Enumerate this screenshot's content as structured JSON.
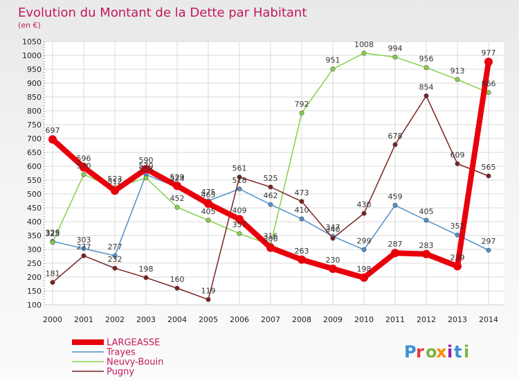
{
  "chart_data": {
    "type": "line",
    "title": "Evolution du Montant de la Dette par Habitant",
    "subtitle": "(en €)",
    "xlabel": "",
    "ylabel": "",
    "x": [
      "2000",
      "2001",
      "2002",
      "2003",
      "2004",
      "2005",
      "2006",
      "2007",
      "2008",
      "2009",
      "2010",
      "2011",
      "2012",
      "2013",
      "2014"
    ],
    "yticks": [
      100,
      150,
      200,
      250,
      300,
      350,
      400,
      450,
      500,
      550,
      600,
      650,
      700,
      750,
      800,
      850,
      900,
      950,
      1000,
      1050
    ],
    "ylim": [
      100,
      1050
    ],
    "grid": true,
    "legend": "bottom-left",
    "series": [
      {
        "name": "LARGEASSE",
        "color": "#e8000b",
        "values": [
          697,
          596,
          512,
          590,
          529,
          465,
          409,
          306,
          263,
          230,
          198,
          287,
          283,
          239,
          977
        ]
      },
      {
        "name": "Trayes",
        "color": "#4f8fc8",
        "values": [
          329,
          303,
          277,
          570,
          524,
          475,
          518,
          462,
          410,
          347,
          299,
          459,
          405,
          352,
          297
        ]
      },
      {
        "name": "Neuvy-Bouin",
        "color": "#86d147",
        "values": [
          325,
          570,
          523,
          558,
          452,
          405,
          357,
          316,
          792,
          951,
          1008,
          994,
          956,
          913,
          866
        ]
      },
      {
        "name": "Pugny",
        "color": "#7b1f1f",
        "values": [
          181,
          277,
          232,
          198,
          160,
          119,
          561,
          525,
          473,
          340,
          430,
          678,
          854,
          609,
          565
        ]
      }
    ]
  },
  "brand": {
    "text": "Proxiti",
    "letters": [
      "P",
      "r",
      "o",
      "x",
      "i",
      "t",
      "i"
    ]
  }
}
